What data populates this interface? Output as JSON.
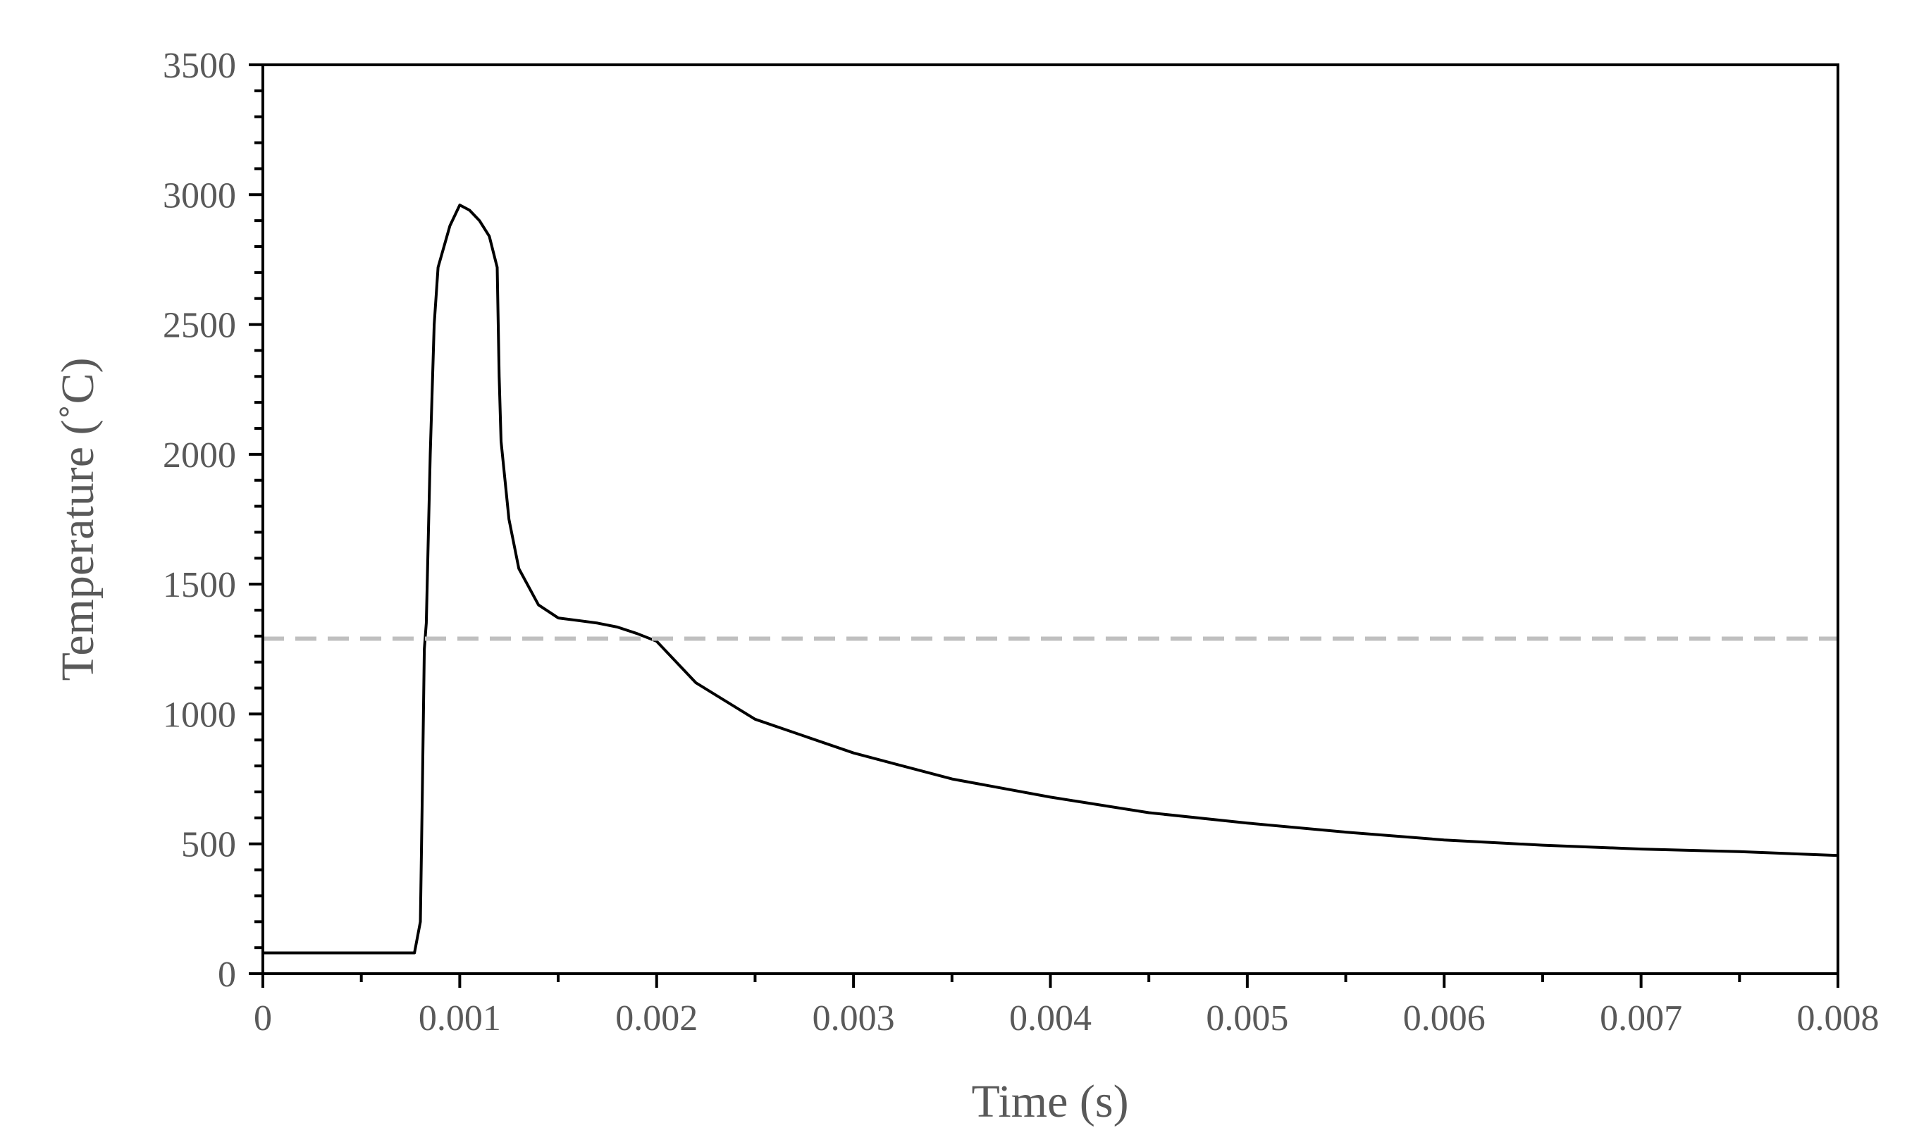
{
  "chart_data": {
    "type": "line",
    "title": "",
    "xlabel": "Time (s)",
    "ylabel": "Temperature (˚C)",
    "xlim": [
      0,
      0.008
    ],
    "ylim": [
      0,
      3500
    ],
    "x_ticks": [
      0,
      0.001,
      0.002,
      0.003,
      0.004,
      0.005,
      0.006,
      0.007,
      0.008
    ],
    "x_tick_labels": [
      "0",
      "0.001",
      "0.002",
      "0.003",
      "0.004",
      "0.005",
      "0.006",
      "0.007",
      "0.008"
    ],
    "y_ticks": [
      0,
      500,
      1000,
      1500,
      2000,
      2500,
      3000,
      3500
    ],
    "y_tick_labels": [
      "0",
      "500",
      "1000",
      "1500",
      "2000",
      "2500",
      "3000",
      "3500"
    ],
    "grid": false,
    "legend": "none",
    "series": [
      {
        "color": "#000000",
        "style": "solid",
        "x": [
          0,
          0.0004,
          0.00077,
          0.0008,
          0.00081,
          0.00082,
          0.00083,
          0.00085,
          0.00087,
          0.00089,
          0.00095,
          0.001,
          0.00105,
          0.0011,
          0.00115,
          0.00119,
          0.0012,
          0.00121,
          0.00125,
          0.0013,
          0.0014,
          0.0015,
          0.0016,
          0.0017,
          0.0018,
          0.0019,
          0.002,
          0.0022,
          0.0025,
          0.003,
          0.0035,
          0.004,
          0.0045,
          0.005,
          0.0055,
          0.006,
          0.0065,
          0.007,
          0.0075,
          0.008
        ],
        "y": [
          80,
          80,
          80,
          200,
          700,
          1250,
          1350,
          2000,
          2500,
          2720,
          2880,
          2960,
          2940,
          2900,
          2840,
          2720,
          2300,
          2050,
          1750,
          1560,
          1420,
          1370,
          1360,
          1350,
          1335,
          1310,
          1280,
          1120,
          980,
          850,
          750,
          680,
          620,
          580,
          545,
          515,
          495,
          480,
          470,
          455
        ]
      },
      {
        "color": "#bfbfbf",
        "style": "dashed",
        "x": [
          0,
          0.008
        ],
        "y": [
          1290,
          1290
        ]
      }
    ]
  }
}
